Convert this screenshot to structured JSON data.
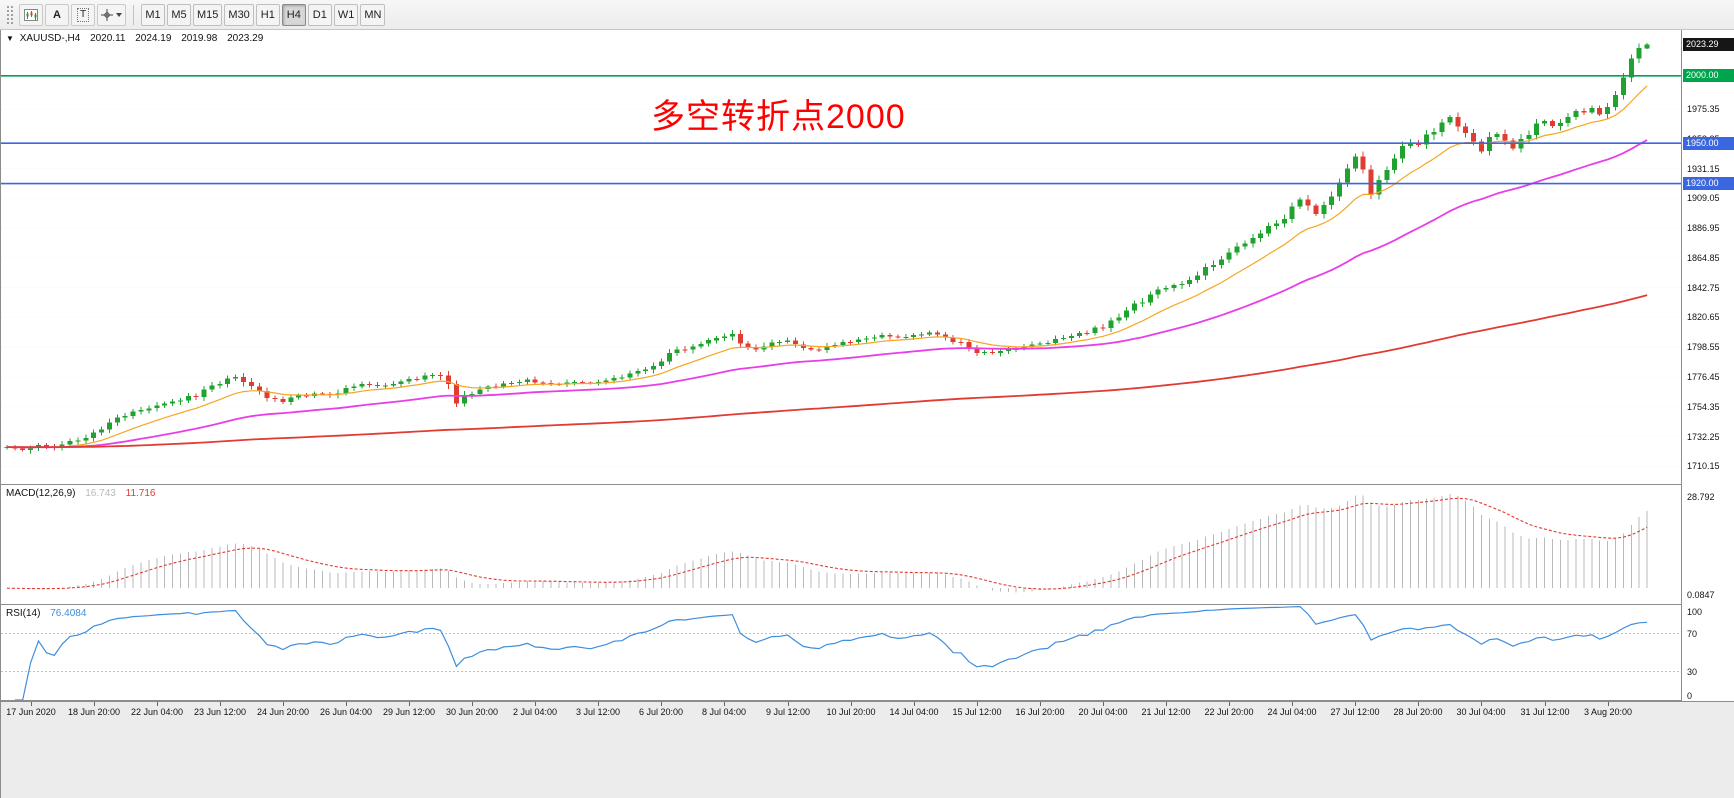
{
  "toolbar": {
    "icons": [
      {
        "name": "new-chart-icon",
        "label": ""
      },
      {
        "name": "text-label-icon",
        "label": "A"
      },
      {
        "name": "text-tool-icon",
        "label": "T"
      },
      {
        "name": "crosshair-icon",
        "label": ""
      }
    ],
    "timeframes": [
      "M1",
      "M5",
      "M15",
      "M30",
      "H1",
      "H4",
      "D1",
      "W1",
      "MN"
    ],
    "active_timeframe": "H4"
  },
  "chart_header": {
    "symbol": "XAUUSD-,H4",
    "open": "2020.11",
    "high": "2024.19",
    "low": "2019.98",
    "close": "2023.29"
  },
  "annotation": {
    "text": "多空转折点2000",
    "color": "#ff0000"
  },
  "price_axis": {
    "last_price_badge": {
      "label": "2023.29",
      "bg": "#161616",
      "price": 2023.29
    },
    "line_badges": [
      {
        "label": "2000.00",
        "price": 2000.0,
        "bg": "#00a44d"
      },
      {
        "label": "1950.00",
        "price": 1950.0,
        "bg": "#3a66e0"
      },
      {
        "label": "1920.00",
        "price": 1920.0,
        "bg": "#3a66e0"
      }
    ],
    "ticks": [
      {
        "label": "1975.35",
        "price": 1975.35
      },
      {
        "label": "1953.25",
        "price": 1953.25
      },
      {
        "label": "1931.15",
        "price": 1931.15
      },
      {
        "label": "1909.05",
        "price": 1909.05
      },
      {
        "label": "1886.95",
        "price": 1886.95
      },
      {
        "label": "1864.85",
        "price": 1864.85
      },
      {
        "label": "1842.75",
        "price": 1842.75
      },
      {
        "label": "1820.65",
        "price": 1820.65
      },
      {
        "label": "1798.55",
        "price": 1798.55
      },
      {
        "label": "1776.45",
        "price": 1776.45
      },
      {
        "label": "1754.35",
        "price": 1754.35
      },
      {
        "label": "1732.25",
        "price": 1732.25
      },
      {
        "label": "1710.15",
        "price": 1710.15
      }
    ]
  },
  "chart_data": {
    "type": "candlestick",
    "symbol": "XAUUSD-",
    "timeframe": "H4",
    "bars": 209,
    "ylim": [
      1697,
      2034
    ],
    "up_color": "#1fa32e",
    "down_color": "#e03c31",
    "last_bar": {
      "open": 2020.11,
      "high": 2024.19,
      "low": 2019.98,
      "close": 2023.29
    },
    "hlines": [
      {
        "price": 2000.0,
        "color": "#00a44d",
        "label": "2000.00"
      },
      {
        "price": 1950.0,
        "color": "#3a66e0",
        "label": "1950.00"
      },
      {
        "price": 1920.0,
        "color": "#3a66e0",
        "label": "1920.00"
      }
    ],
    "moving_averages": [
      {
        "name": "fast",
        "period": 12,
        "color": "#f5a623"
      },
      {
        "name": "medium",
        "period": 44,
        "color": "#e83ee8"
      },
      {
        "name": "slow",
        "period": 240,
        "color": "#e03c31"
      }
    ],
    "close_waypoints": [
      [
        0,
        1725
      ],
      [
        2,
        1722
      ],
      [
        4,
        1726
      ],
      [
        6,
        1724
      ],
      [
        8,
        1728
      ],
      [
        10,
        1731
      ],
      [
        12,
        1737
      ],
      [
        14,
        1745
      ],
      [
        16,
        1750
      ],
      [
        18,
        1753
      ],
      [
        20,
        1757
      ],
      [
        22,
        1760
      ],
      [
        24,
        1763
      ],
      [
        26,
        1770
      ],
      [
        28,
        1774
      ],
      [
        29,
        1777
      ],
      [
        31,
        1768
      ],
      [
        33,
        1762
      ],
      [
        35,
        1758
      ],
      [
        37,
        1762
      ],
      [
        39,
        1764
      ],
      [
        41,
        1763
      ],
      [
        43,
        1768
      ],
      [
        45,
        1771
      ],
      [
        47,
        1770
      ],
      [
        49,
        1772
      ],
      [
        51,
        1774
      ],
      [
        53,
        1777
      ],
      [
        55,
        1779
      ],
      [
        56,
        1771
      ],
      [
        57,
        1757
      ],
      [
        58,
        1763
      ],
      [
        60,
        1767
      ],
      [
        62,
        1770
      ],
      [
        64,
        1772
      ],
      [
        66,
        1774
      ],
      [
        68,
        1772
      ],
      [
        70,
        1771
      ],
      [
        72,
        1773
      ],
      [
        74,
        1772
      ],
      [
        76,
        1774
      ],
      [
        78,
        1776
      ],
      [
        80,
        1780
      ],
      [
        82,
        1786
      ],
      [
        84,
        1793
      ],
      [
        86,
        1798
      ],
      [
        88,
        1802
      ],
      [
        90,
        1806
      ],
      [
        92,
        1808
      ],
      [
        93,
        1800
      ],
      [
        95,
        1797
      ],
      [
        97,
        1801
      ],
      [
        99,
        1803
      ],
      [
        101,
        1798
      ],
      [
        103,
        1797
      ],
      [
        105,
        1801
      ],
      [
        107,
        1803
      ],
      [
        109,
        1805
      ],
      [
        111,
        1808
      ],
      [
        113,
        1806
      ],
      [
        115,
        1807
      ],
      [
        117,
        1809
      ],
      [
        119,
        1805
      ],
      [
        121,
        1801
      ],
      [
        123,
        1795
      ],
      [
        125,
        1794
      ],
      [
        127,
        1797
      ],
      [
        129,
        1799
      ],
      [
        131,
        1801
      ],
      [
        133,
        1804
      ],
      [
        135,
        1807
      ],
      [
        137,
        1810
      ],
      [
        139,
        1814
      ],
      [
        141,
        1821
      ],
      [
        143,
        1829
      ],
      [
        145,
        1836
      ],
      [
        147,
        1843
      ],
      [
        149,
        1846
      ],
      [
        151,
        1852
      ],
      [
        153,
        1861
      ],
      [
        155,
        1869
      ],
      [
        157,
        1876
      ],
      [
        159,
        1884
      ],
      [
        161,
        1890
      ],
      [
        162,
        1896
      ],
      [
        163,
        1902
      ],
      [
        164,
        1908
      ],
      [
        165,
        1903
      ],
      [
        166,
        1898
      ],
      [
        167,
        1902
      ],
      [
        168,
        1910
      ],
      [
        169,
        1922
      ],
      [
        170,
        1933
      ],
      [
        171,
        1941
      ],
      [
        172,
        1930
      ],
      [
        173,
        1912
      ],
      [
        174,
        1920
      ],
      [
        175,
        1931
      ],
      [
        176,
        1940
      ],
      [
        177,
        1946
      ],
      [
        178,
        1951
      ],
      [
        179,
        1948
      ],
      [
        180,
        1954
      ],
      [
        181,
        1960
      ],
      [
        182,
        1966
      ],
      [
        183,
        1970
      ],
      [
        184,
        1962
      ],
      [
        185,
        1955
      ],
      [
        186,
        1950
      ],
      [
        187,
        1944
      ],
      [
        188,
        1952
      ],
      [
        189,
        1957
      ],
      [
        190,
        1952
      ],
      [
        191,
        1946
      ],
      [
        192,
        1952
      ],
      [
        193,
        1958
      ],
      [
        194,
        1963
      ],
      [
        195,
        1967
      ],
      [
        196,
        1962
      ],
      [
        197,
        1966
      ],
      [
        198,
        1970
      ],
      [
        199,
        1974
      ],
      [
        200,
        1972
      ],
      [
        201,
        1976
      ],
      [
        202,
        1971
      ],
      [
        203,
        1975
      ],
      [
        204,
        1984
      ],
      [
        205,
        1998
      ],
      [
        206,
        2012
      ],
      [
        207,
        2021
      ],
      [
        208,
        2023.29
      ]
    ]
  },
  "macd_panel": {
    "title": "MACD(12,26,9)",
    "main_value": "16.743",
    "signal_value": "11.716",
    "axis_top": "28.792",
    "axis_bottom": "0.0847",
    "fast": 12,
    "slow": 26,
    "signal": 9,
    "histogram_color": "#b9b9b9",
    "signal_color": "#e03c31"
  },
  "rsi_panel": {
    "title": "RSI(14)",
    "value": "76.4084",
    "period": 14,
    "line_color": "#3e8ede",
    "levels": [
      70,
      30
    ],
    "axis_labels": [
      {
        "label": "100",
        "value": 100
      },
      {
        "label": "70",
        "value": 70
      },
      {
        "label": "30",
        "value": 30
      },
      {
        "label": "0",
        "value": 0
      }
    ]
  },
  "time_axis": {
    "first_label_bar": 3,
    "bars_per_label": 8,
    "labels": [
      "17 Jun 2020",
      "18 Jun 20:00",
      "22 Jun 04:00",
      "23 Jun 12:00",
      "24 Jun 20:00",
      "26 Jun 04:00",
      "29 Jun 12:00",
      "30 Jun 20:00",
      "2 Jul 04:00",
      "3 Jul 12:00",
      "6 Jul 20:00",
      "8 Jul 04:00",
      "9 Jul 12:00",
      "10 Jul 20:00",
      "14 Jul 04:00",
      "15 Jul 12:00",
      "16 Jul 20:00",
      "20 Jul 04:00",
      "21 Jul 12:00",
      "22 Jul 20:00",
      "24 Jul 04:00",
      "27 Jul 12:00",
      "28 Jul 20:00",
      "30 Jul 04:00",
      "31 Jul 12:00",
      "3 Aug 20:00"
    ]
  }
}
